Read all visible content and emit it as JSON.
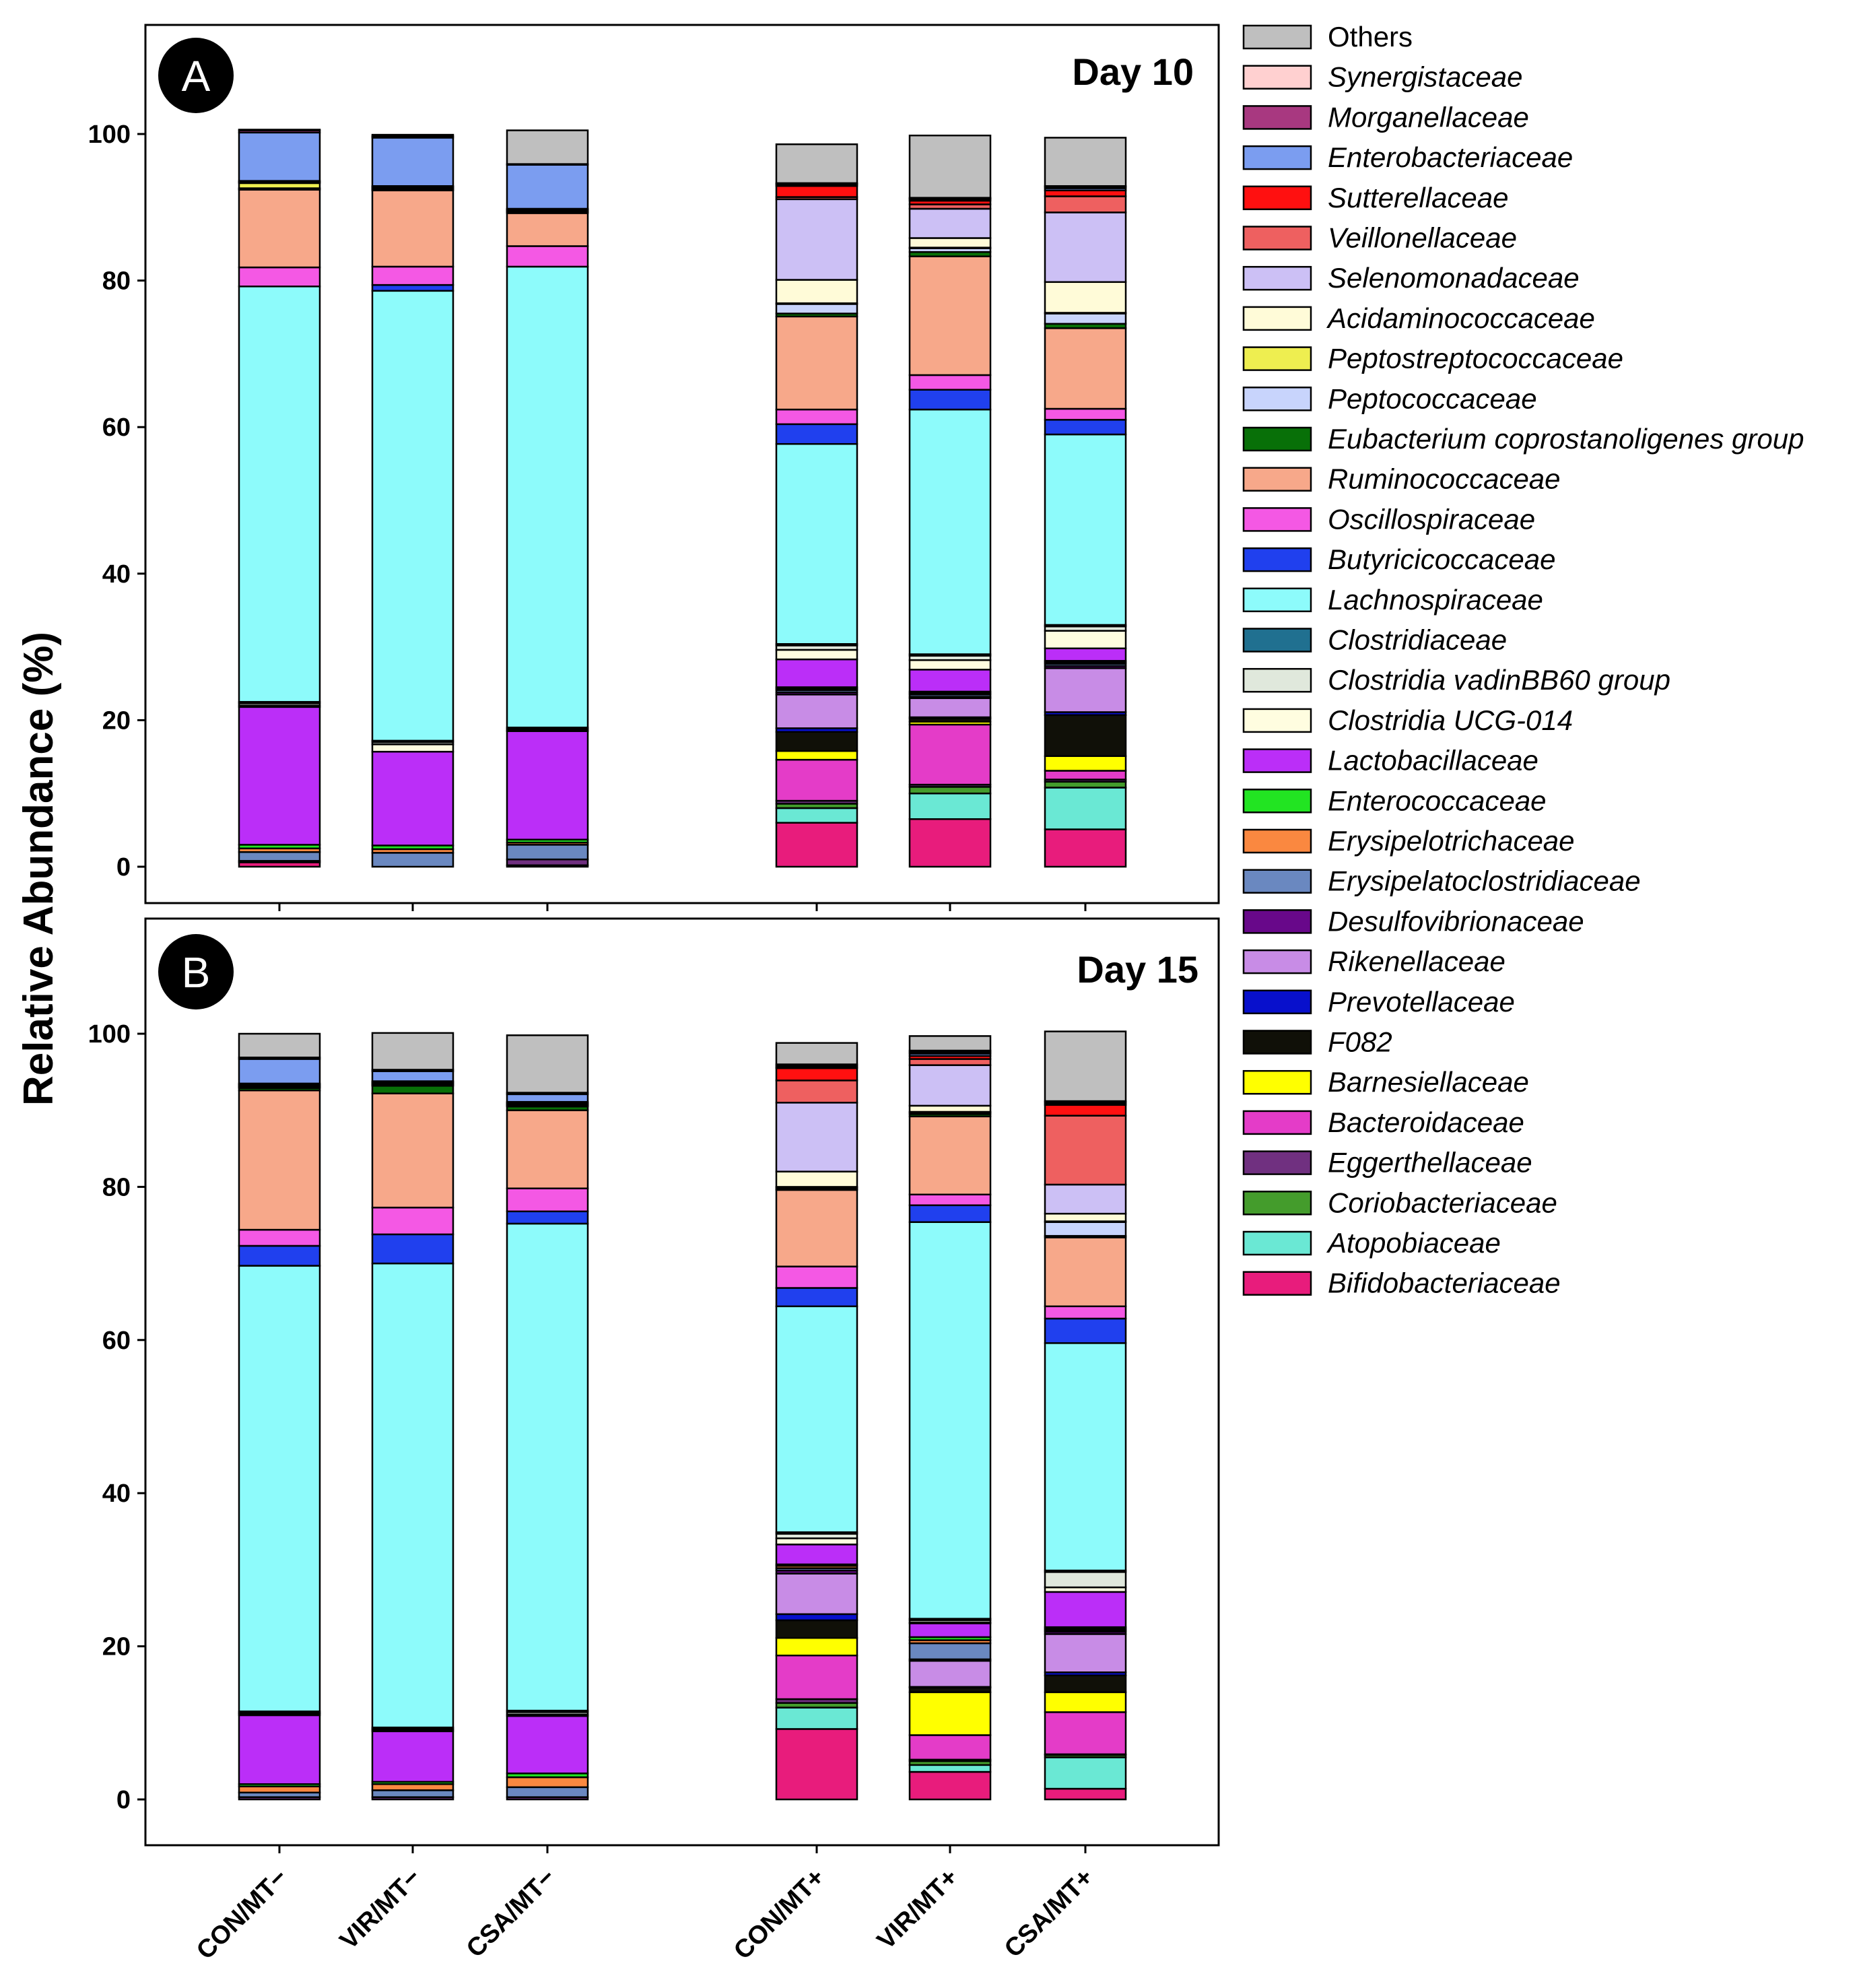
{
  "y_axis_label": "Relative Abundance (%)",
  "legend_entries": [
    {
      "name": "Others",
      "color": "#bfbfbf",
      "italic": false
    },
    {
      "name": "Synergistaceae",
      "color": "#ffd0d0",
      "italic": true
    },
    {
      "name": "Morganellaceae",
      "color": "#a83880",
      "italic": true
    },
    {
      "name": "Enterobacteriaceae",
      "color": "#7b9df0",
      "italic": true
    },
    {
      "name": "Sutterellaceae",
      "color": "#ff1010",
      "italic": true
    },
    {
      "name": "Veillonellaceae",
      "color": "#ee6060",
      "italic": true
    },
    {
      "name": "Selenomonadaceae",
      "color": "#ccc0f5",
      "italic": true
    },
    {
      "name": "Acidaminococcaceae",
      "color": "#fffbd8",
      "italic": true
    },
    {
      "name": "Peptostreptococcaceae",
      "color": "#eeee50",
      "italic": true
    },
    {
      "name": "Peptococcaceae",
      "color": "#c8d4fc",
      "italic": true
    },
    {
      "name": "Eubacterium coprostanoligenes group",
      "color": "#087008",
      "italic": true
    },
    {
      "name": "Ruminococcaceae",
      "color": "#f7a88a",
      "italic": true
    },
    {
      "name": "Oscillospiraceae",
      "color": "#f458e4",
      "italic": true
    },
    {
      "name": "Butyricicoccaceae",
      "color": "#2040ee",
      "italic": true
    },
    {
      "name": "Lachnospiraceae",
      "color": "#8dfbfb",
      "italic": true
    },
    {
      "name": "Clostridiaceae",
      "color": "#207090",
      "italic": true
    },
    {
      "name": "Clostridia vadinBB60 group",
      "color": "#e0e8dc",
      "italic": true
    },
    {
      "name": "Clostridia UCG-014",
      "color": "#fffde0",
      "italic": true
    },
    {
      "name": "Lactobacillaceae",
      "color": "#bb2ef8",
      "italic": true
    },
    {
      "name": "Enterococcaceae",
      "color": "#22e422",
      "italic": true
    },
    {
      "name": "Erysipelotrichaceae",
      "color": "#fa8840",
      "italic": true
    },
    {
      "name": "Erysipelatoclostridiaceae",
      "color": "#6a88c0",
      "italic": true
    },
    {
      "name": "Desulfovibrionaceae",
      "color": "#68088a",
      "italic": true
    },
    {
      "name": "Rikenellaceae",
      "color": "#c88ce6",
      "italic": true
    },
    {
      "name": "Prevotellaceae",
      "color": "#0810cc",
      "italic": true
    },
    {
      "name": "F082",
      "color": "#101008",
      "italic": true
    },
    {
      "name": "Barnesiellaceae",
      "color": "#ffff00",
      "italic": true
    },
    {
      "name": "Bacteroidaceae",
      "color": "#e43cc8",
      "italic": true
    },
    {
      "name": "Eggerthellaceae",
      "color": "#703080",
      "italic": true
    },
    {
      "name": "Coriobacteriaceae",
      "color": "#449c2c",
      "italic": true
    },
    {
      "name": "Atopobiaceae",
      "color": "#6ae8d4",
      "italic": true
    },
    {
      "name": "Bifidobacteriaceae",
      "color": "#e81c7c",
      "italic": true
    }
  ],
  "chart_data": [
    {
      "type": "bar",
      "stacked": true,
      "panel_letter": "A",
      "title": "Day 10",
      "ylabel": "Relative Abundance (%)",
      "ylim": [
        0,
        120
      ],
      "yticks": [
        "0",
        "20",
        "40",
        "60",
        "80",
        "100"
      ],
      "categories": [
        "CON/MT−",
        "VIR/MT−",
        "CSA/MT−",
        "CON/MT+",
        "VIR/MT+",
        "CSA/MT+"
      ],
      "series": [
        {
          "name": "Bifidobacteriaceae",
          "values": [
            0.6,
            0,
            0.2,
            6.0,
            6.5,
            5.1
          ]
        },
        {
          "name": "Atopobiaceae",
          "values": [
            0,
            0,
            0,
            2.0,
            3.5,
            5.7
          ]
        },
        {
          "name": "Coriobacteriaceae",
          "values": [
            0,
            0,
            0,
            0.6,
            0.9,
            0.8
          ]
        },
        {
          "name": "Eggerthellaceae",
          "values": [
            0.2,
            0,
            0.8,
            0.4,
            0.3,
            0.3
          ]
        },
        {
          "name": "Bacteroidaceae",
          "values": [
            0,
            0,
            0,
            5.6,
            8.2,
            1.2
          ]
        },
        {
          "name": "Barnesiellaceae",
          "values": [
            0,
            0,
            0,
            1.2,
            0.4,
            2.0
          ]
        },
        {
          "name": "F082",
          "values": [
            0,
            0,
            0,
            2.6,
            0.4,
            5.6
          ]
        },
        {
          "name": "Prevotellaceae",
          "values": [
            0,
            0,
            0,
            0.5,
            0.2,
            0.4
          ]
        },
        {
          "name": "Rikenellaceae",
          "values": [
            0,
            0,
            0,
            4.6,
            2.6,
            6.0
          ]
        },
        {
          "name": "Desulfovibrionaceae",
          "values": [
            0,
            0,
            0,
            0.3,
            0.2,
            0.3
          ]
        },
        {
          "name": "Erysipelatoclostridiaceae",
          "values": [
            1.2,
            1.9,
            2.0,
            0.3,
            0.3,
            0.3
          ]
        },
        {
          "name": "Erysipelotrichaceae",
          "values": [
            0.5,
            0.5,
            0.3,
            0.2,
            0.2,
            0.2
          ]
        },
        {
          "name": "Enterococcaceae",
          "values": [
            0.5,
            0.5,
            0.4,
            0.2,
            0.2,
            0.2
          ]
        },
        {
          "name": "Lactobacillaceae",
          "values": [
            18.8,
            12.8,
            14.8,
            3.8,
            3.0,
            1.7
          ]
        },
        {
          "name": "Clostridia UCG-014",
          "values": [
            0.2,
            1.0,
            0.1,
            1.3,
            1.3,
            2.4
          ]
        },
        {
          "name": "Clostridia vadinBB60 group",
          "values": [
            0.3,
            0.3,
            0.2,
            0.6,
            0.6,
            0.6
          ]
        },
        {
          "name": "Clostridiaceae",
          "values": [
            0.2,
            0.2,
            0.2,
            0.2,
            0.2,
            0.2
          ]
        },
        {
          "name": "Lachnospiraceae",
          "values": [
            56.7,
            61.4,
            62.9,
            27.3,
            33.4,
            26.0
          ]
        },
        {
          "name": "Butyricicoccaceae",
          "values": [
            0,
            0.8,
            0,
            2.7,
            2.7,
            2.0
          ]
        },
        {
          "name": "Oscillospiraceae",
          "values": [
            2.6,
            2.5,
            2.8,
            2.0,
            2.0,
            1.5
          ]
        },
        {
          "name": "Ruminococcaceae",
          "values": [
            10.6,
            10.4,
            4.5,
            12.7,
            16.2,
            11.0
          ]
        },
        {
          "name": "Eubacterium coprostanoligenes group",
          "values": [
            0.1,
            0.1,
            0.1,
            0.4,
            0.6,
            0.6
          ]
        },
        {
          "name": "Peptococcaceae",
          "values": [
            0.1,
            0.1,
            0.1,
            1.3,
            0.5,
            1.4
          ]
        },
        {
          "name": "Peptostreptococcaceae",
          "values": [
            0.7,
            0.1,
            0.1,
            0.1,
            0.1,
            0.1
          ]
        },
        {
          "name": "Acidaminococcaceae",
          "values": [
            0.1,
            0.1,
            0.1,
            3.2,
            1.3,
            4.2
          ]
        },
        {
          "name": "Selenomonadaceae",
          "values": [
            0.1,
            0.1,
            0.1,
            11.0,
            4.0,
            9.5
          ]
        },
        {
          "name": "Veillonellaceae",
          "values": [
            0.1,
            0.1,
            0.1,
            0.3,
            0.6,
            2.2
          ]
        },
        {
          "name": "Sutterellaceae",
          "values": [
            0,
            0,
            0,
            1.5,
            0.5,
            0.8
          ]
        },
        {
          "name": "Enterobacteriaceae",
          "values": [
            6.6,
            6.6,
            6.0,
            0.2,
            0.2,
            0.3
          ]
        },
        {
          "name": "Morganellaceae",
          "values": [
            0.3,
            0.2,
            0.1,
            0.1,
            0.1,
            0.2
          ]
        },
        {
          "name": "Synergistaceae",
          "values": [
            0,
            0,
            0,
            0.1,
            0.1,
            0.1
          ]
        },
        {
          "name": "Others",
          "values": [
            0.1,
            0.2,
            4.6,
            5.3,
            8.5,
            6.6
          ]
        }
      ]
    },
    {
      "type": "bar",
      "stacked": true,
      "panel_letter": "B",
      "title": "Day 15",
      "ylabel": "Relative Abundance (%)",
      "ylim": [
        0,
        120
      ],
      "yticks": [
        "0",
        "20",
        "40",
        "60",
        "80",
        "100"
      ],
      "categories": [
        "CON/MT−",
        "VIR/MT−",
        "CSA/MT−",
        "CON/MT+",
        "VIR/MT+",
        "CSA/MT+"
      ],
      "series": [
        {
          "name": "Bifidobacteriaceae",
          "values": [
            0,
            0,
            0,
            9.2,
            3.6,
            1.4
          ]
        },
        {
          "name": "Atopobiaceae",
          "values": [
            0,
            0,
            0,
            2.8,
            0.9,
            4.1
          ]
        },
        {
          "name": "Coriobacteriaceae",
          "values": [
            0,
            0,
            0,
            0.6,
            0.5,
            0.3
          ]
        },
        {
          "name": "Eggerthellaceae",
          "values": [
            0.3,
            0.3,
            0.3,
            0.5,
            0.2,
            0.1
          ]
        },
        {
          "name": "Bacteroidaceae",
          "values": [
            0,
            0,
            0,
            5.7,
            3.2,
            5.5
          ]
        },
        {
          "name": "Barnesiellaceae",
          "values": [
            0,
            0,
            0,
            2.3,
            5.6,
            2.6
          ]
        },
        {
          "name": "F082",
          "values": [
            0,
            0,
            0,
            2.3,
            0.6,
            2.2
          ]
        },
        {
          "name": "Prevotellaceae",
          "values": [
            0,
            0,
            0,
            0.8,
            0.1,
            0.4
          ]
        },
        {
          "name": "Rikenellaceae",
          "values": [
            0,
            0,
            0,
            5.3,
            3.4,
            5.0
          ]
        },
        {
          "name": "Desulfovibrionaceae",
          "values": [
            0,
            0,
            0,
            0.4,
            0.2,
            0.3
          ]
        },
        {
          "name": "Erysipelatoclostridiaceae",
          "values": [
            0.6,
            0.9,
            1.3,
            0.3,
            2.1,
            0.2
          ]
        },
        {
          "name": "Erysipelotrichaceae",
          "values": [
            0.8,
            0.8,
            1.3,
            0.3,
            0.4,
            0.2
          ]
        },
        {
          "name": "Enterococcaceae",
          "values": [
            0.3,
            0.3,
            0.5,
            0.2,
            0.4,
            0.2
          ]
        },
        {
          "name": "Lactobacillaceae",
          "values": [
            9.0,
            6.6,
            7.5,
            2.6,
            1.8,
            4.6
          ]
        },
        {
          "name": "Clostridia UCG-014",
          "values": [
            0.2,
            0.2,
            0.2,
            0.8,
            0.1,
            0.6
          ]
        },
        {
          "name": "Clostridia vadinBB60 group",
          "values": [
            0.1,
            0.1,
            0.3,
            0.6,
            0.3,
            2.0
          ]
        },
        {
          "name": "Clostridiaceae",
          "values": [
            0.2,
            0.2,
            0.2,
            0.2,
            0.2,
            0.2
          ]
        },
        {
          "name": "Lachnospiraceae",
          "values": [
            58.2,
            60.6,
            63.6,
            29.5,
            51.8,
            29.7
          ]
        },
        {
          "name": "Butyricicoccaceae",
          "values": [
            2.6,
            3.8,
            1.6,
            2.4,
            2.2,
            3.2
          ]
        },
        {
          "name": "Oscillospiraceae",
          "values": [
            2.1,
            3.5,
            3.0,
            2.8,
            1.4,
            1.6
          ]
        },
        {
          "name": "Ruminococcaceae",
          "values": [
            18.2,
            14.9,
            10.2,
            10.0,
            10.2,
            9.0
          ]
        },
        {
          "name": "Eubacterium coprostanoligenes group",
          "values": [
            0.3,
            1.0,
            0.5,
            0.1,
            0.3,
            0.2
          ]
        },
        {
          "name": "Peptococcaceae",
          "values": [
            0.1,
            0.1,
            0.1,
            0.2,
            0.2,
            1.8
          ]
        },
        {
          "name": "Peptostreptococcaceae",
          "values": [
            0.1,
            0.1,
            0.1,
            0.1,
            0.1,
            0.1
          ]
        },
        {
          "name": "Acidaminococcaceae",
          "values": [
            0.1,
            0.1,
            0.1,
            2.0,
            0.8,
            1.0
          ]
        },
        {
          "name": "Selenomonadaceae",
          "values": [
            0.1,
            0.1,
            0.1,
            9.0,
            5.3,
            3.8
          ]
        },
        {
          "name": "Veillonellaceae",
          "values": [
            0.1,
            0.1,
            0.1,
            2.9,
            0.8,
            9.0
          ]
        },
        {
          "name": "Sutterellaceae",
          "values": [
            0.1,
            0.1,
            0.1,
            1.6,
            0.4,
            1.4
          ]
        },
        {
          "name": "Enterobacteriaceae",
          "values": [
            3.2,
            1.3,
            1.0,
            0.1,
            0.3,
            0.2
          ]
        },
        {
          "name": "Morganellaceae",
          "values": [
            0.2,
            0.2,
            0.2,
            0.2,
            0.2,
            0.2
          ]
        },
        {
          "name": "Synergistaceae",
          "values": [
            0,
            0,
            0,
            0.2,
            0.2,
            0.1
          ]
        },
        {
          "name": "Others",
          "values": [
            3.1,
            4.8,
            7.5,
            2.8,
            1.9,
            9.1
          ]
        }
      ]
    }
  ]
}
